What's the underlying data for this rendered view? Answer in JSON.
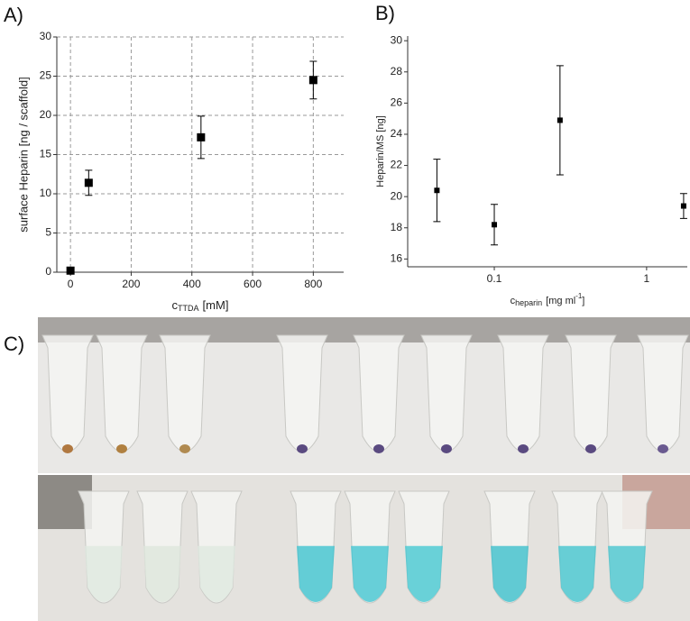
{
  "panel_labels": [
    "A)",
    "B)",
    "C)"
  ],
  "chart_data": [
    {
      "type": "scatter",
      "ylabel": "surface Heparin [ng / scaffold]",
      "xlabel": "c",
      "xlabel_sub": "TTDA",
      "xlabel_unit": "[mM]",
      "x": [
        0,
        60,
        430,
        800
      ],
      "values": [
        0.2,
        11.4,
        17.2,
        24.5
      ],
      "errors": [
        0,
        1.6,
        2.7,
        2.4
      ],
      "color": "#000000",
      "xlim": [
        -45,
        900
      ],
      "ylim": [
        0,
        30
      ],
      "xticks": [
        0,
        200,
        400,
        600,
        800
      ],
      "yticks": [
        0,
        5,
        10,
        15,
        20,
        25,
        30
      ],
      "grid": true,
      "log_x": false
    },
    {
      "type": "scatter",
      "ylabel": "Heparin/MS [ng]",
      "xlabel": "c",
      "xlabel_sub": "heparin",
      "xlabel_unit": "[mg ml",
      "xlabel_sup": "-1",
      "xlabel_end": "]",
      "x": [
        0.042,
        0.1,
        0.27,
        1.75
      ],
      "values": [
        20.4,
        18.2,
        24.9,
        19.4
      ],
      "errors": [
        2.0,
        1.3,
        3.5,
        0.8
      ],
      "color": "#000000",
      "xlim": [
        0.027,
        1.85
      ],
      "ylim": [
        15.5,
        30.3
      ],
      "xticks": [
        0.1,
        1
      ],
      "yticks": [
        16,
        18,
        20,
        22,
        24,
        26,
        28,
        30
      ],
      "grid": false,
      "log_x": true
    }
  ]
}
